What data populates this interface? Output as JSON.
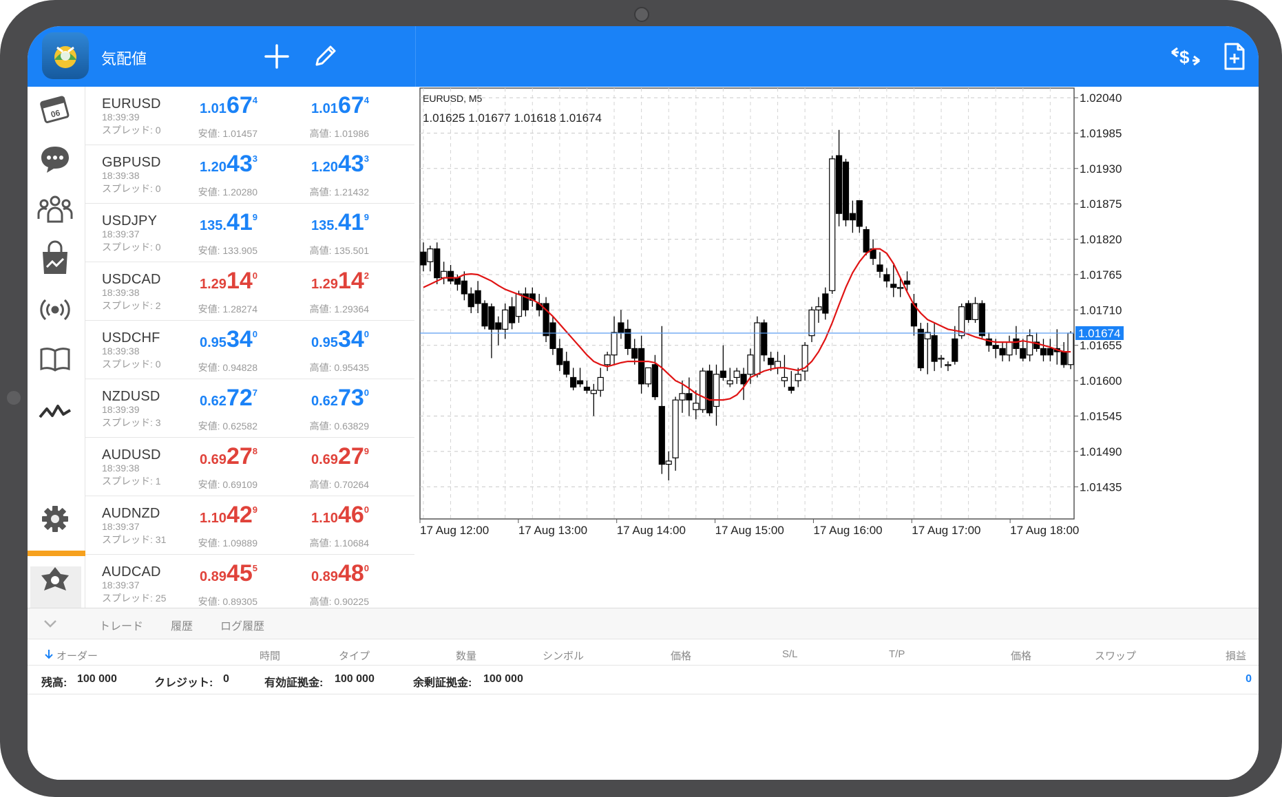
{
  "header": {
    "title": "気配値",
    "add_icon": "plus-icon",
    "edit_icon": "pencil-icon",
    "trade_icon": "dollar-swap-icon",
    "new_doc_icon": "new-document-icon"
  },
  "colors": {
    "header": "#1a82f7",
    "up": "#1a82f7",
    "down": "#e0423a",
    "highlight": "#f6a11e",
    "ma_line": "#e01414"
  },
  "rail": {
    "items": [
      "calendar-icon",
      "chat-icon",
      "community-icon",
      "market-bag-icon",
      "signal-icon",
      "book-icon",
      "chart-line-icon",
      "settings-icon",
      "traders-icon"
    ],
    "highlighted": "settings-icon"
  },
  "quotes": [
    {
      "symbol": "EURUSD",
      "time": "18:39:39",
      "spread": "スプレッド: 0",
      "bid_a": "1.01",
      "bid_b": "67",
      "bid_c": "4",
      "ask_a": "1.01",
      "ask_b": "67",
      "ask_c": "4",
      "low": "安値: 1.01457",
      "high": "高値: 1.01986",
      "bid_dir": "up",
      "ask_dir": "up"
    },
    {
      "symbol": "GBPUSD",
      "time": "18:39:38",
      "spread": "スプレッド: 0",
      "bid_a": "1.20",
      "bid_b": "43",
      "bid_c": "3",
      "ask_a": "1.20",
      "ask_b": "43",
      "ask_c": "3",
      "low": "安値: 1.20280",
      "high": "高値: 1.21432",
      "bid_dir": "up",
      "ask_dir": "up"
    },
    {
      "symbol": "USDJPY",
      "time": "18:39:37",
      "spread": "スプレッド: 0",
      "bid_a": "135.",
      "bid_b": "41",
      "bid_c": "9",
      "ask_a": "135.",
      "ask_b": "41",
      "ask_c": "9",
      "low": "安値: 133.905",
      "high": "高値: 135.501",
      "bid_dir": "up",
      "ask_dir": "up"
    },
    {
      "symbol": "USDCAD",
      "time": "18:39:38",
      "spread": "スプレッド: 2",
      "bid_a": "1.29",
      "bid_b": "14",
      "bid_c": "0",
      "ask_a": "1.29",
      "ask_b": "14",
      "ask_c": "2",
      "low": "安値: 1.28274",
      "high": "高値: 1.29364",
      "bid_dir": "dn",
      "ask_dir": "dn"
    },
    {
      "symbol": "USDCHF",
      "time": "18:39:38",
      "spread": "スプレッド: 0",
      "bid_a": "0.95",
      "bid_b": "34",
      "bid_c": "0",
      "ask_a": "0.95",
      "ask_b": "34",
      "ask_c": "0",
      "low": "安値: 0.94828",
      "high": "高値: 0.95435",
      "bid_dir": "up",
      "ask_dir": "up"
    },
    {
      "symbol": "NZDUSD",
      "time": "18:39:39",
      "spread": "スプレッド: 3",
      "bid_a": "0.62",
      "bid_b": "72",
      "bid_c": "7",
      "ask_a": "0.62",
      "ask_b": "73",
      "ask_c": "0",
      "low": "安値: 0.62582",
      "high": "高値: 0.63829",
      "bid_dir": "up",
      "ask_dir": "up"
    },
    {
      "symbol": "AUDUSD",
      "time": "18:39:38",
      "spread": "スプレッド: 1",
      "bid_a": "0.69",
      "bid_b": "27",
      "bid_c": "8",
      "ask_a": "0.69",
      "ask_b": "27",
      "ask_c": "9",
      "low": "安値: 0.69109",
      "high": "高値: 0.70264",
      "bid_dir": "dn",
      "ask_dir": "dn"
    },
    {
      "symbol": "AUDNZD",
      "time": "18:39:37",
      "spread": "スプレッド: 31",
      "bid_a": "1.10",
      "bid_b": "42",
      "bid_c": "9",
      "ask_a": "1.10",
      "ask_b": "46",
      "ask_c": "0",
      "low": "安値: 1.09889",
      "high": "高値: 1.10684",
      "bid_dir": "dn",
      "ask_dir": "dn"
    },
    {
      "symbol": "AUDCAD",
      "time": "18:39:37",
      "spread": "スプレッド: 25",
      "bid_a": "0.89",
      "bid_b": "45",
      "bid_c": "5",
      "ask_a": "0.89",
      "ask_b": "48",
      "ask_c": "0",
      "low": "安値: 0.89305",
      "high": "高値: 0.90225",
      "bid_dir": "dn",
      "ask_dir": "dn"
    }
  ],
  "chart": {
    "title": "EURUSD, M5",
    "ohlc": "1.01625 1.01677 1.01618 1.01674"
  },
  "chart_data": {
    "type": "candlestick",
    "symbol": "EURUSD",
    "timeframe": "M5",
    "y_ticks": [
      "1.02040",
      "1.01985",
      "1.01930",
      "1.01875",
      "1.01820",
      "1.01765",
      "1.01710",
      "1.01655",
      "1.01600",
      "1.01545",
      "1.01490",
      "1.01435"
    ],
    "y_tick_values": [
      1.0204,
      1.01985,
      1.0193,
      1.01875,
      1.0182,
      1.01765,
      1.0171,
      1.01655,
      1.016,
      1.01545,
      1.0149,
      1.01435
    ],
    "x_ticks": [
      "17 Aug 12:00",
      "17 Aug 13:00",
      "17 Aug 14:00",
      "17 Aug 15:00",
      "17 Aug 16:00",
      "17 Aug 17:00",
      "17 Aug 18:00"
    ],
    "ylim": [
      1.01385,
      1.02055
    ],
    "current_price": 1.01674,
    "current_price_label": "1.01674",
    "grid": true,
    "candles": [
      [
        1.018,
        1.01815,
        1.0177,
        1.0178
      ],
      [
        1.01785,
        1.0181,
        1.0177,
        1.01805
      ],
      [
        1.01805,
        1.01815,
        1.0175,
        1.0176
      ],
      [
        1.0176,
        1.01785,
        1.0175,
        1.0177
      ],
      [
        1.0177,
        1.0178,
        1.0175,
        1.01755
      ],
      [
        1.0176,
        1.01765,
        1.0174,
        1.0175
      ],
      [
        1.01755,
        1.0177,
        1.01725,
        1.01735
      ],
      [
        1.01735,
        1.01745,
        1.01705,
        1.01715
      ],
      [
        1.0174,
        1.01755,
        1.01705,
        1.0172
      ],
      [
        1.0172,
        1.01725,
        1.0168,
        1.01685
      ],
      [
        1.01715,
        1.0172,
        1.01635,
        1.0168
      ],
      [
        1.0169,
        1.017,
        1.01655,
        1.0168
      ],
      [
        1.0168,
        1.0172,
        1.01665,
        1.0171
      ],
      [
        1.01715,
        1.0173,
        1.0168,
        1.0169
      ],
      [
        1.017,
        1.0174,
        1.0169,
        1.01735
      ],
      [
        1.01735,
        1.01745,
        1.017,
        1.0171
      ],
      [
        1.01735,
        1.01745,
        1.01715,
        1.01725
      ],
      [
        1.0172,
        1.01735,
        1.017,
        1.0171
      ],
      [
        1.0172,
        1.0173,
        1.0166,
        1.0167
      ],
      [
        1.0169,
        1.017,
        1.0164,
        1.0165
      ],
      [
        1.0165,
        1.01665,
        1.01615,
        1.01625
      ],
      [
        1.0163,
        1.01645,
        1.01605,
        1.0161
      ],
      [
        1.01605,
        1.0162,
        1.01585,
        1.0159
      ],
      [
        1.016,
        1.0162,
        1.0159,
        1.01595
      ],
      [
        1.0159,
        1.016,
        1.0158,
        1.01585
      ],
      [
        1.0158,
        1.01595,
        1.01545,
        1.01585
      ],
      [
        1.01585,
        1.0162,
        1.01575,
        1.01605
      ],
      [
        1.01625,
        1.01645,
        1.01615,
        1.0164
      ],
      [
        1.0164,
        1.017,
        1.01625,
        1.01675
      ],
      [
        1.0169,
        1.0171,
        1.01665,
        1.01675
      ],
      [
        1.0168,
        1.01695,
        1.0164,
        1.0165
      ],
      [
        1.0165,
        1.01665,
        1.01625,
        1.01635
      ],
      [
        1.0165,
        1.0167,
        1.0158,
        1.01595
      ],
      [
        1.01595,
        1.0162,
        1.0159,
        1.0162
      ],
      [
        1.01625,
        1.0164,
        1.0157,
        1.01575
      ],
      [
        1.0156,
        1.01685,
        1.01455,
        1.0147
      ],
      [
        1.0147,
        1.0149,
        1.01445,
        1.01475
      ],
      [
        1.0148,
        1.01575,
        1.0146,
        1.0157
      ],
      [
        1.0157,
        1.016,
        1.0155,
        1.0158
      ],
      [
        1.0158,
        1.01605,
        1.01545,
        1.0157
      ],
      [
        1.01555,
        1.01585,
        1.0154,
        1.01565
      ],
      [
        1.01555,
        1.0162,
        1.0155,
        1.01615
      ],
      [
        1.01615,
        1.01625,
        1.01545,
        1.0155
      ],
      [
        1.0156,
        1.01625,
        1.0153,
        1.0161
      ],
      [
        1.01615,
        1.01655,
        1.016,
        1.01605
      ],
      [
        1.01595,
        1.0162,
        1.0159,
        1.016
      ],
      [
        1.01605,
        1.0162,
        1.01595,
        1.01615
      ],
      [
        1.0161,
        1.0162,
        1.0157,
        1.01595
      ],
      [
        1.0161,
        1.0165,
        1.01595,
        1.0164
      ],
      [
        1.0161,
        1.017,
        1.01605,
        1.0169
      ],
      [
        1.0169,
        1.01695,
        1.0163,
        1.0164
      ],
      [
        1.01635,
        1.01645,
        1.01615,
        1.01625
      ],
      [
        1.0162,
        1.01645,
        1.0161,
        1.0163
      ],
      [
        1.016,
        1.0164,
        1.0159,
        1.01605
      ],
      [
        1.0159,
        1.01615,
        1.0158,
        1.01585
      ],
      [
        1.016,
        1.0162,
        1.0159,
        1.0161
      ],
      [
        1.01615,
        1.0166,
        1.016,
        1.01655
      ],
      [
        1.0167,
        1.01715,
        1.0166,
        1.0171
      ],
      [
        1.0171,
        1.0173,
        1.0169,
        1.01715
      ],
      [
        1.01735,
        1.01745,
        1.01695,
        1.01705
      ],
      [
        1.0174,
        1.0195,
        1.01735,
        1.01945
      ],
      [
        1.0195,
        1.0199,
        1.0184,
        1.0186
      ],
      [
        1.0194,
        1.01945,
        1.0184,
        1.0185
      ],
      [
        1.0186,
        1.0188,
        1.0183,
        1.0185
      ],
      [
        1.0188,
        1.0188,
        1.0183,
        1.0184
      ],
      [
        1.01835,
        1.0184,
        1.01795,
        1.018
      ],
      [
        1.01805,
        1.0182,
        1.0178,
        1.0179
      ],
      [
        1.0178,
        1.018,
        1.0176,
        1.0177
      ],
      [
        1.01765,
        1.01775,
        1.01745,
        1.01755
      ],
      [
        1.0175,
        1.0178,
        1.0173,
        1.01745
      ],
      [
        1.01745,
        1.0176,
        1.0173,
        1.01745
      ],
      [
        1.01755,
        1.0177,
        1.0174,
        1.0175
      ],
      [
        1.0172,
        1.01735,
        1.0167,
        1.01685
      ],
      [
        1.0168,
        1.0169,
        1.01615,
        1.0162
      ],
      [
        1.01665,
        1.0169,
        1.0161,
        1.01675
      ],
      [
        1.0167,
        1.0169,
        1.01615,
        1.0163
      ],
      [
        1.01635,
        1.0164,
        1.0162,
        1.01635
      ],
      [
        1.01625,
        1.0163,
        1.01615,
        1.01625
      ],
      [
        1.01665,
        1.01685,
        1.01625,
        1.0163
      ],
      [
        1.0167,
        1.0172,
        1.01665,
        1.01715
      ],
      [
        1.0172,
        1.01725,
        1.0169,
        1.01695
      ],
      [
        1.01695,
        1.0173,
        1.0169,
        1.0172
      ],
      [
        1.0172,
        1.01725,
        1.01665,
        1.0167
      ],
      [
        1.01665,
        1.01675,
        1.01645,
        1.01655
      ],
      [
        1.01655,
        1.01665,
        1.01635,
        1.0165
      ],
      [
        1.0165,
        1.0166,
        1.0163,
        1.0164
      ],
      [
        1.0164,
        1.0167,
        1.0163,
        1.0166
      ],
      [
        1.01665,
        1.01685,
        1.0164,
        1.0165
      ],
      [
        1.0165,
        1.01665,
        1.0163,
        1.01635
      ],
      [
        1.0164,
        1.0168,
        1.0163,
        1.0167
      ],
      [
        1.0166,
        1.01675,
        1.01645,
        1.0165
      ],
      [
        1.0165,
        1.01665,
        1.0163,
        1.0164
      ],
      [
        1.0165,
        1.01665,
        1.0163,
        1.0164
      ],
      [
        1.0165,
        1.0168,
        1.01625,
        1.01645
      ],
      [
        1.01645,
        1.0166,
        1.0162,
        1.01625
      ],
      [
        1.01625,
        1.01677,
        1.01618,
        1.01674
      ]
    ],
    "ma": [
      1.01745,
      1.0175,
      1.01755,
      1.0176,
      1.0176,
      1.0176,
      1.01765,
      1.01766,
      1.01765,
      1.0176,
      1.01755,
      1.01748,
      1.01742,
      1.01738,
      1.01734,
      1.0173,
      1.01726,
      1.0172,
      1.0171,
      1.017,
      1.01688,
      1.01676,
      1.01664,
      1.01652,
      1.0164,
      1.0163,
      1.01625,
      1.01622,
      1.01625,
      1.01628,
      1.0163,
      1.0163,
      1.0163,
      1.0163,
      1.01628,
      1.0162,
      1.0161,
      1.016,
      1.01595,
      1.01588,
      1.0158,
      1.01575,
      1.0157,
      1.0157,
      1.0157,
      1.01572,
      1.01578,
      1.0159,
      1.01605,
      1.0161,
      1.01615,
      1.01618,
      1.0162,
      1.0162,
      1.01618,
      1.01616,
      1.0162,
      1.0163,
      1.01645,
      1.01665,
      1.0169,
      1.01718,
      1.01745,
      1.01768,
      1.01785,
      1.01798,
      1.01805,
      1.01805,
      1.01798,
      1.01782,
      1.0176,
      1.01738,
      1.01718,
      1.01705,
      1.01695,
      1.0169,
      1.01685,
      1.0168,
      1.01678,
      1.01676,
      1.01672,
      1.01668,
      1.01665,
      1.01662,
      1.0166,
      1.0166,
      1.0166,
      1.0166,
      1.01662,
      1.0166,
      1.01658,
      1.01655,
      1.01652,
      1.01648,
      1.01645,
      1.01645
    ]
  },
  "bottom": {
    "tabs": [
      "トレード",
      "履歴",
      "ログ履歴"
    ],
    "columns": [
      "オーダー",
      "時間",
      "タイプ",
      "数量",
      "シンボル",
      "価格",
      "S/L",
      "T/P",
      "価格",
      "スワップ",
      "損益"
    ],
    "balance_label": "残高:",
    "balance_value": "100 000",
    "credit_label": "クレジット:",
    "credit_value": "0",
    "equity_label": "有効証拠金:",
    "equity_value": "100 000",
    "free_margin_label": "余剰証拠金:",
    "free_margin_value": "100 000",
    "profit_total": "0"
  }
}
